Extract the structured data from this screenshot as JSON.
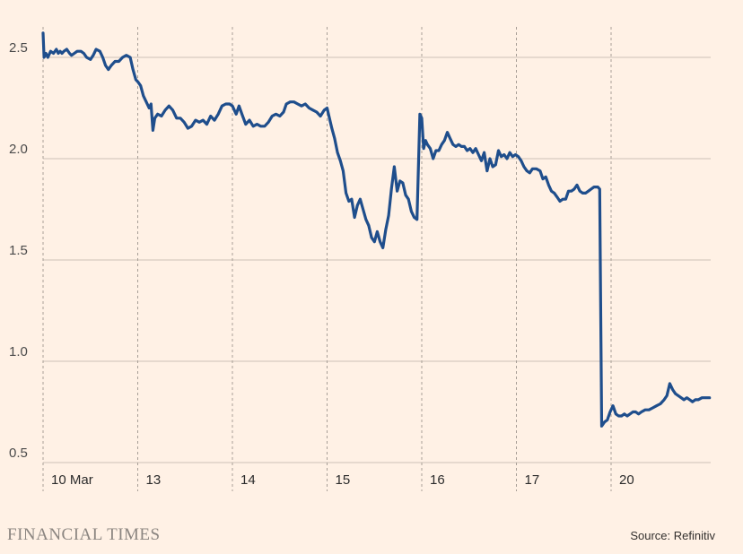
{
  "chart_data": {
    "type": "line",
    "title": "",
    "xlabel": "",
    "ylabel": "",
    "ylim": [
      0.5,
      2.6
    ],
    "yticks": [
      "0.5",
      "1.0",
      "1.5",
      "2.0",
      "2.5"
    ],
    "grid": true,
    "session_labels": [
      "10 Mar",
      "13",
      "14",
      "15",
      "16",
      "17",
      "20"
    ],
    "series": [
      {
        "color": "#1F4E8C",
        "points": [
          [
            0.0,
            2.62
          ],
          [
            0.01,
            2.5
          ],
          [
            0.03,
            2.52
          ],
          [
            0.05,
            2.5
          ],
          [
            0.08,
            2.53
          ],
          [
            0.11,
            2.52
          ],
          [
            0.14,
            2.54
          ],
          [
            0.16,
            2.52
          ],
          [
            0.18,
            2.53
          ],
          [
            0.2,
            2.52
          ],
          [
            0.22,
            2.53
          ],
          [
            0.25,
            2.54
          ],
          [
            0.28,
            2.52
          ],
          [
            0.3,
            2.51
          ],
          [
            0.33,
            2.52
          ],
          [
            0.36,
            2.53
          ],
          [
            0.4,
            2.53
          ],
          [
            0.43,
            2.52
          ],
          [
            0.46,
            2.5
          ],
          [
            0.5,
            2.49
          ],
          [
            0.53,
            2.51
          ],
          [
            0.56,
            2.54
          ],
          [
            0.6,
            2.53
          ],
          [
            0.63,
            2.5
          ],
          [
            0.66,
            2.46
          ],
          [
            0.69,
            2.44
          ],
          [
            0.72,
            2.46
          ],
          [
            0.76,
            2.48
          ],
          [
            0.8,
            2.48
          ],
          [
            0.84,
            2.5
          ],
          [
            0.88,
            2.51
          ],
          [
            0.92,
            2.5
          ],
          [
            0.95,
            2.44
          ],
          [
            0.98,
            2.39
          ],
          [
            1.0,
            2.38
          ],
          [
            1.03,
            2.36
          ],
          [
            1.06,
            2.31
          ],
          [
            1.09,
            2.28
          ],
          [
            1.12,
            2.25
          ],
          [
            1.14,
            2.27
          ],
          [
            1.16,
            2.14
          ],
          [
            1.18,
            2.2
          ],
          [
            1.21,
            2.22
          ],
          [
            1.25,
            2.21
          ],
          [
            1.29,
            2.24
          ],
          [
            1.33,
            2.26
          ],
          [
            1.37,
            2.24
          ],
          [
            1.41,
            2.2
          ],
          [
            1.45,
            2.2
          ],
          [
            1.49,
            2.18
          ],
          [
            1.53,
            2.15
          ],
          [
            1.57,
            2.16
          ],
          [
            1.61,
            2.19
          ],
          [
            1.65,
            2.18
          ],
          [
            1.69,
            2.19
          ],
          [
            1.73,
            2.17
          ],
          [
            1.77,
            2.21
          ],
          [
            1.81,
            2.19
          ],
          [
            1.85,
            2.22
          ],
          [
            1.89,
            2.26
          ],
          [
            1.93,
            2.27
          ],
          [
            1.97,
            2.27
          ],
          [
            2.0,
            2.26
          ],
          [
            2.04,
            2.22
          ],
          [
            2.07,
            2.26
          ],
          [
            2.1,
            2.22
          ],
          [
            2.14,
            2.17
          ],
          [
            2.18,
            2.19
          ],
          [
            2.22,
            2.16
          ],
          [
            2.26,
            2.17
          ],
          [
            2.3,
            2.16
          ],
          [
            2.34,
            2.16
          ],
          [
            2.38,
            2.18
          ],
          [
            2.42,
            2.21
          ],
          [
            2.46,
            2.22
          ],
          [
            2.5,
            2.21
          ],
          [
            2.54,
            2.23
          ],
          [
            2.57,
            2.27
          ],
          [
            2.61,
            2.28
          ],
          [
            2.65,
            2.28
          ],
          [
            2.69,
            2.27
          ],
          [
            2.73,
            2.26
          ],
          [
            2.77,
            2.27
          ],
          [
            2.81,
            2.25
          ],
          [
            2.85,
            2.24
          ],
          [
            2.89,
            2.23
          ],
          [
            2.93,
            2.21
          ],
          [
            2.97,
            2.24
          ],
          [
            3.0,
            2.25
          ],
          [
            3.02,
            2.21
          ],
          [
            3.05,
            2.15
          ],
          [
            3.08,
            2.1
          ],
          [
            3.11,
            2.03
          ],
          [
            3.14,
            1.99
          ],
          [
            3.17,
            1.94
          ],
          [
            3.2,
            1.83
          ],
          [
            3.23,
            1.79
          ],
          [
            3.26,
            1.8
          ],
          [
            3.29,
            1.71
          ],
          [
            3.32,
            1.77
          ],
          [
            3.35,
            1.8
          ],
          [
            3.38,
            1.75
          ],
          [
            3.41,
            1.7
          ],
          [
            3.44,
            1.67
          ],
          [
            3.47,
            1.61
          ],
          [
            3.5,
            1.59
          ],
          [
            3.53,
            1.64
          ],
          [
            3.56,
            1.59
          ],
          [
            3.59,
            1.56
          ],
          [
            3.62,
            1.65
          ],
          [
            3.65,
            1.72
          ],
          [
            3.68,
            1.85
          ],
          [
            3.71,
            1.96
          ],
          [
            3.74,
            1.84
          ],
          [
            3.77,
            1.89
          ],
          [
            3.8,
            1.88
          ],
          [
            3.83,
            1.82
          ],
          [
            3.86,
            1.8
          ],
          [
            3.89,
            1.74
          ],
          [
            3.92,
            1.71
          ],
          [
            3.95,
            1.7
          ],
          [
            3.98,
            2.22
          ],
          [
            4.0,
            2.2
          ],
          [
            4.02,
            2.05
          ],
          [
            4.04,
            2.09
          ],
          [
            4.06,
            2.07
          ],
          [
            4.09,
            2.05
          ],
          [
            4.12,
            2.0
          ],
          [
            4.15,
            2.04
          ],
          [
            4.18,
            2.04
          ],
          [
            4.21,
            2.07
          ],
          [
            4.24,
            2.09
          ],
          [
            4.27,
            2.13
          ],
          [
            4.3,
            2.1
          ],
          [
            4.33,
            2.07
          ],
          [
            4.36,
            2.06
          ],
          [
            4.39,
            2.07
          ],
          [
            4.42,
            2.06
          ],
          [
            4.45,
            2.06
          ],
          [
            4.48,
            2.04
          ],
          [
            4.51,
            2.05
          ],
          [
            4.54,
            2.03
          ],
          [
            4.57,
            2.05
          ],
          [
            4.6,
            2.02
          ],
          [
            4.63,
            1.99
          ],
          [
            4.66,
            2.03
          ],
          [
            4.69,
            1.94
          ],
          [
            4.72,
            2.0
          ],
          [
            4.75,
            1.96
          ],
          [
            4.78,
            1.97
          ],
          [
            4.81,
            2.04
          ],
          [
            4.84,
            2.01
          ],
          [
            4.87,
            2.02
          ],
          [
            4.9,
            2.0
          ],
          [
            4.93,
            2.03
          ],
          [
            4.96,
            2.01
          ],
          [
            4.99,
            2.02
          ],
          [
            5.02,
            2.01
          ],
          [
            5.05,
            1.99
          ],
          [
            5.08,
            1.96
          ],
          [
            5.11,
            1.94
          ],
          [
            5.14,
            1.93
          ],
          [
            5.17,
            1.95
          ],
          [
            5.21,
            1.95
          ],
          [
            5.25,
            1.94
          ],
          [
            5.28,
            1.9
          ],
          [
            5.31,
            1.91
          ],
          [
            5.34,
            1.87
          ],
          [
            5.37,
            1.84
          ],
          [
            5.4,
            1.83
          ],
          [
            5.43,
            1.81
          ],
          [
            5.46,
            1.79
          ],
          [
            5.49,
            1.8
          ],
          [
            5.52,
            1.8
          ],
          [
            5.55,
            1.84
          ],
          [
            5.58,
            1.84
          ],
          [
            5.61,
            1.85
          ],
          [
            5.64,
            1.87
          ],
          [
            5.67,
            1.84
          ],
          [
            5.7,
            1.83
          ],
          [
            5.73,
            1.83
          ],
          [
            5.76,
            1.84
          ],
          [
            5.79,
            1.85
          ],
          [
            5.82,
            1.86
          ],
          [
            5.86,
            1.86
          ],
          [
            5.88,
            1.85
          ],
          [
            5.9,
            0.68
          ],
          [
            5.93,
            0.7
          ],
          [
            5.96,
            0.71
          ],
          [
            5.99,
            0.75
          ],
          [
            6.02,
            0.78
          ],
          [
            6.05,
            0.74
          ],
          [
            6.08,
            0.73
          ],
          [
            6.11,
            0.73
          ],
          [
            6.14,
            0.74
          ],
          [
            6.17,
            0.73
          ],
          [
            6.2,
            0.74
          ],
          [
            6.23,
            0.75
          ],
          [
            6.26,
            0.75
          ],
          [
            6.29,
            0.74
          ],
          [
            6.32,
            0.75
          ],
          [
            6.36,
            0.76
          ],
          [
            6.4,
            0.76
          ],
          [
            6.44,
            0.77
          ],
          [
            6.48,
            0.78
          ],
          [
            6.52,
            0.79
          ],
          [
            6.56,
            0.81
          ],
          [
            6.59,
            0.83
          ],
          [
            6.62,
            0.89
          ],
          [
            6.65,
            0.86
          ],
          [
            6.68,
            0.84
          ],
          [
            6.71,
            0.83
          ],
          [
            6.74,
            0.82
          ],
          [
            6.77,
            0.81
          ],
          [
            6.8,
            0.82
          ],
          [
            6.83,
            0.81
          ],
          [
            6.86,
            0.8
          ],
          [
            6.89,
            0.81
          ],
          [
            6.92,
            0.81
          ],
          [
            6.96,
            0.82
          ],
          [
            6.99,
            0.82
          ],
          [
            7.02,
            0.82
          ],
          [
            7.04,
            0.82
          ]
        ]
      }
    ]
  },
  "footer": {
    "brand": "FINANCIAL TIMES",
    "source": "Source: Refinitiv"
  }
}
